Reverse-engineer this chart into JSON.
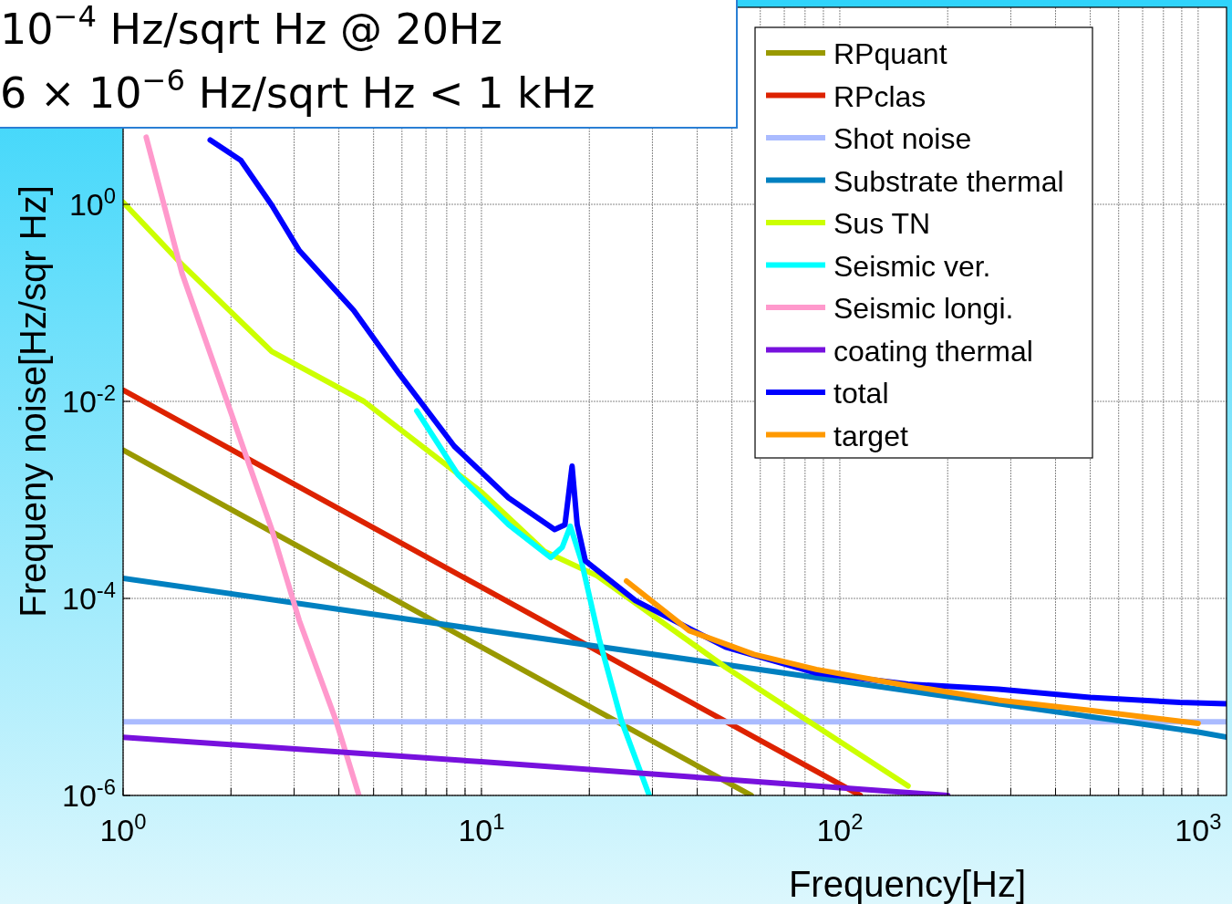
{
  "chart_data": {
    "type": "line",
    "xlabel": "Frequency[Hz]",
    "ylabel": "Frequeny noise[Hz/sqr Hz]",
    "annotations": [
      "10$^{−4}$ Hz/sqrt Hz @ 20Hz",
      "6 × 10$^{−6}$ Hz/sqrt Hz < 1 kHz"
    ],
    "log": "xy",
    "grid": true,
    "legend": "top right",
    "line_style": "solid",
    "xlim": [
      1,
      1200
    ],
    "ylim": [
      1e-06,
      100
    ],
    "xticks": [
      {
        "value": 1,
        "label": "10$^{0}$"
      },
      {
        "value": 2,
        "label": null
      },
      {
        "value": 3,
        "label": null
      },
      {
        "value": 4,
        "label": null
      },
      {
        "value": 5,
        "label": null
      },
      {
        "value": 6,
        "label": null
      },
      {
        "value": 7,
        "label": null
      },
      {
        "value": 8,
        "label": null
      },
      {
        "value": 9,
        "label": null
      },
      {
        "value": 10,
        "label": "10$^{1}$"
      },
      {
        "value": 20,
        "label": null
      },
      {
        "value": 30,
        "label": null
      },
      {
        "value": 40,
        "label": null
      },
      {
        "value": 50,
        "label": null
      },
      {
        "value": 60,
        "label": null
      },
      {
        "value": 70,
        "label": null
      },
      {
        "value": 80,
        "label": null
      },
      {
        "value": 90,
        "label": null
      },
      {
        "value": 100,
        "label": "10$^{2}$"
      },
      {
        "value": 200,
        "label": null
      },
      {
        "value": 300,
        "label": null
      },
      {
        "value": 400,
        "label": null
      },
      {
        "value": 500,
        "label": null
      },
      {
        "value": 600,
        "label": null
      },
      {
        "value": 700,
        "label": null
      },
      {
        "value": 800,
        "label": null
      },
      {
        "value": 900,
        "label": null
      },
      {
        "value": 1000,
        "label": "10$^{3}$"
      }
    ],
    "yticks": [
      {
        "value": 1e-06,
        "label": "10$^{-6}$"
      },
      {
        "value": 0.0001,
        "label": "10$^{-4}$"
      },
      {
        "value": 0.01,
        "label": "10$^{-2}$"
      },
      {
        "value": 1,
        "label": "10$^{0}$"
      }
    ],
    "series": [
      {
        "name": "RPquant",
        "color": "#999900",
        "x": [
          1,
          2,
          5,
          10,
          20,
          56.6
        ],
        "values": [
          0.0032,
          0.0008,
          0.000128,
          3.2e-05,
          8e-06,
          1e-06
        ]
      },
      {
        "name": "RPclas",
        "color": "#dd2200",
        "x": [
          1,
          2,
          5,
          10,
          20,
          50,
          114
        ],
        "values": [
          0.013,
          0.00325,
          0.00052,
          0.00013,
          3.25e-05,
          5.2e-06,
          1e-06
        ]
      },
      {
        "name": "Shot noise",
        "color": "#aabbff",
        "x": [
          1,
          1200
        ],
        "values": [
          5.6e-06,
          5.6e-06
        ]
      },
      {
        "name": "Substrate thermal",
        "color": "#0080c0",
        "x": [
          1,
          10,
          100,
          1000,
          1200
        ],
        "values": [
          0.00016,
          4.8e-05,
          1.45e-05,
          4.4e-06,
          3.9e-06
        ]
      },
      {
        "name": "Sus TN",
        "color": "#ccff00",
        "x": [
          1,
          1.46,
          2.6,
          4.7,
          10,
          15,
          21,
          48,
          155
        ],
        "values": [
          1.05,
          0.245,
          0.032,
          0.01,
          0.0012,
          0.0003,
          0.00017,
          2e-05,
          1.25e-06
        ]
      },
      {
        "name": "Seismic ver.",
        "color": "#00ffff",
        "x": [
          6.6,
          8.6,
          11.9,
          15.6,
          16.8,
          17.7,
          19,
          21.3,
          24.6,
          29.4
        ],
        "values": [
          0.008,
          0.0018,
          0.00056,
          0.00026,
          0.00033,
          0.00054,
          0.00024,
          3.9e-05,
          5.7e-06,
          1e-06
        ]
      },
      {
        "name": "Seismic longi.",
        "color": "#ff99cc",
        "x": [
          1.16,
          1.46,
          1.95,
          2.6,
          3.1,
          3.93,
          4.55
        ],
        "values": [
          4.8,
          0.2,
          0.01,
          0.0005,
          6e-05,
          5.7e-06,
          1e-06
        ]
      },
      {
        "name": "coating thermal",
        "color": "#7711dd",
        "x": [
          1,
          10,
          100,
          200
        ],
        "values": [
          3.9e-06,
          2.2e-06,
          1.2e-06,
          1e-06
        ]
      },
      {
        "name": "total",
        "color": "#0000ff",
        "x": [
          1.75,
          2.13,
          2.6,
          3.1,
          4.4,
          5.9,
          8.4,
          11.9,
          16,
          17.1,
          17.9,
          18.5,
          19.5,
          26.9,
          48,
          86,
          155,
          277,
          498,
          889,
          1200
        ],
        "values": [
          4.5,
          2.8,
          0.98,
          0.34,
          0.084,
          0.019,
          0.0035,
          0.00105,
          0.0005,
          0.00056,
          0.0022,
          0.00056,
          0.00024,
          9.5e-05,
          3.2e-05,
          1.75e-05,
          1.35e-05,
          1.2e-05,
          9.9e-06,
          8.8e-06,
          8.5e-06
        ]
      },
      {
        "name": "target",
        "color": "#ff9900",
        "x": [
          25.4,
          38,
          57.6,
          86,
          155,
          277,
          498,
          1000
        ],
        "values": [
          0.00015,
          4.7e-05,
          2.7e-05,
          1.9e-05,
          1.3e-05,
          9.3e-06,
          7.3e-06,
          5.4e-06
        ]
      }
    ]
  }
}
